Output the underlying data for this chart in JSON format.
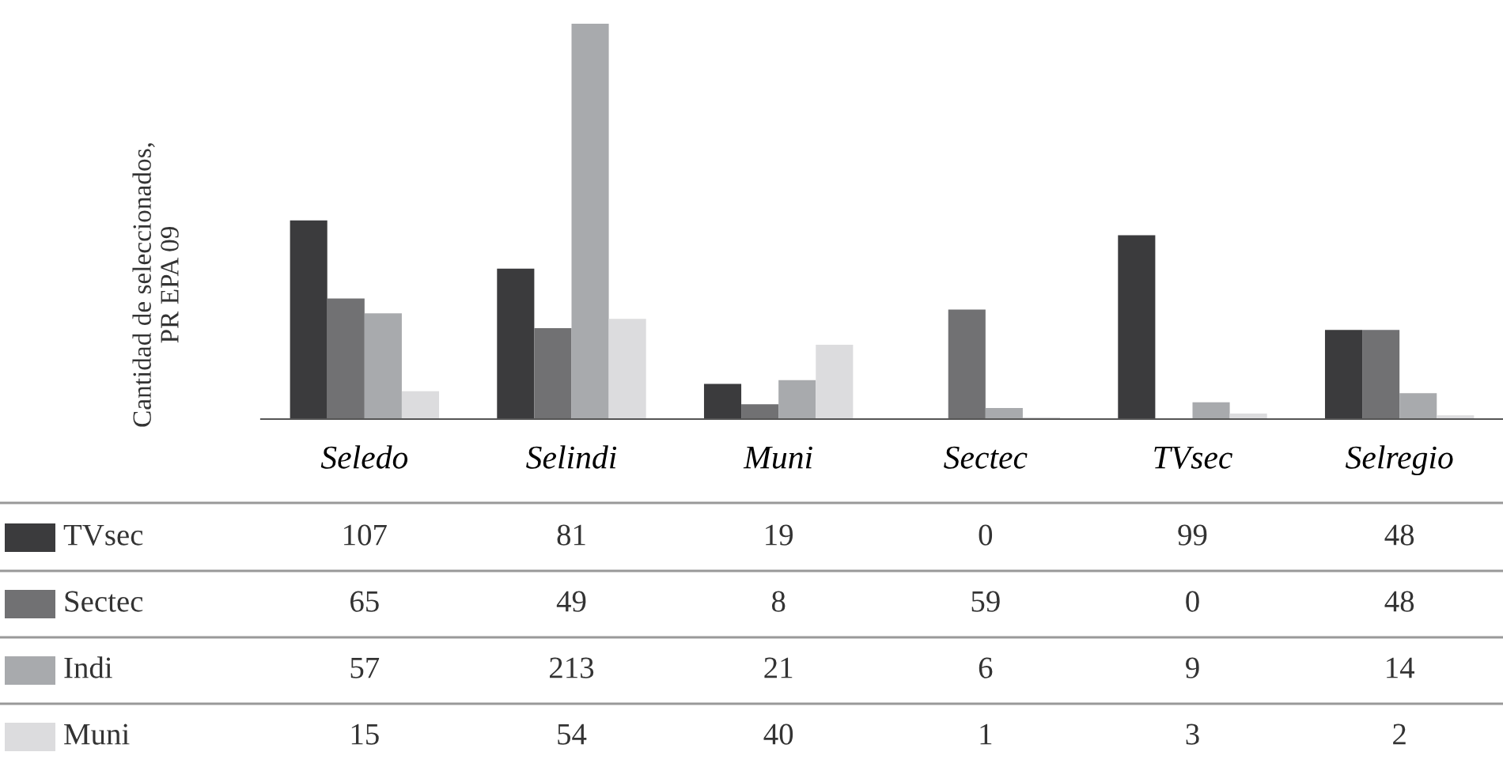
{
  "chart_data": {
    "type": "bar",
    "ylabel": "Cantidad de seleccionados,\nPR EPA 09",
    "categories": [
      "Seledo",
      "Selindi",
      "Muni",
      "Sectec",
      "TVsec",
      "Selregio"
    ],
    "series": [
      {
        "name": "TVsec",
        "color": "#3b3b3d",
        "values": [
          107,
          81,
          19,
          0,
          99,
          48
        ]
      },
      {
        "name": "Sectec",
        "color": "#717173",
        "values": [
          65,
          49,
          8,
          59,
          0,
          48
        ]
      },
      {
        "name": "Indi",
        "color": "#a8aaad",
        "values": [
          57,
          213,
          21,
          6,
          9,
          14
        ]
      },
      {
        "name": "Muni",
        "color": "#dcdcde",
        "values": [
          15,
          54,
          40,
          1,
          3,
          2
        ]
      }
    ],
    "data_labels": true,
    "legend": "bottom left"
  }
}
